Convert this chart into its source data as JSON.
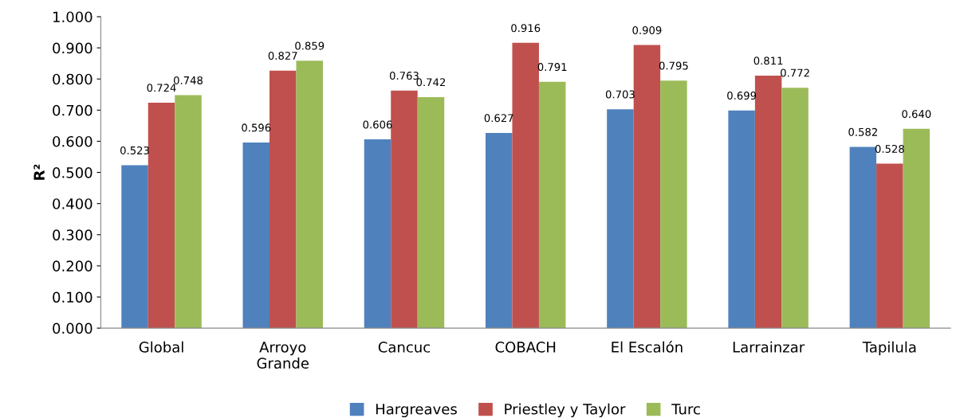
{
  "chart_data": {
    "type": "bar",
    "ylabel": "R²",
    "categories": [
      "Global",
      "Arroyo\nGrande",
      "Cancuc",
      "COBACH",
      "El Escalón",
      "Larrainzar",
      "Tapilula"
    ],
    "series": [
      {
        "name": "Hargreaves",
        "color": "#4f81bd",
        "values": [
          0.523,
          0.596,
          0.606,
          0.627,
          0.703,
          0.699,
          0.582
        ],
        "value_labels": [
          "0.523",
          "0.596",
          "0.606",
          "0.627",
          "0.703",
          "0.699",
          "0.582"
        ]
      },
      {
        "name": "Priestley y Taylor",
        "color": "#c0504d",
        "values": [
          0.724,
          0.827,
          0.763,
          0.916,
          0.909,
          0.811,
          0.528
        ],
        "value_labels": [
          "0.724",
          "0.827",
          "0.763",
          "0.916",
          "0.909",
          "0.811",
          "0.528"
        ]
      },
      {
        "name": "Turc",
        "color": "#9bbb59",
        "values": [
          0.748,
          0.859,
          0.742,
          0.791,
          0.795,
          0.772,
          0.64
        ],
        "value_labels": [
          "0.748",
          "0.859",
          "0.742",
          "0.791",
          "0.795",
          "0.772",
          "0.640"
        ]
      }
    ],
    "ylim": [
      0,
      1
    ],
    "yticks": [
      {
        "value": 0,
        "label": "0.000"
      },
      {
        "value": 0.1,
        "label": "0.100"
      },
      {
        "value": 0.2,
        "label": "0.200"
      },
      {
        "value": 0.3,
        "label": "0.300"
      },
      {
        "value": 0.4,
        "label": "0.400"
      },
      {
        "value": 0.5,
        "label": "0.500"
      },
      {
        "value": 0.6,
        "label": "0.600"
      },
      {
        "value": 0.7,
        "label": "0.700"
      },
      {
        "value": 0.8,
        "label": "0.800"
      },
      {
        "value": 0.9,
        "label": "0.900"
      },
      {
        "value": 1,
        "label": "1.000"
      }
    ],
    "grid": false,
    "legend": "bottom"
  }
}
